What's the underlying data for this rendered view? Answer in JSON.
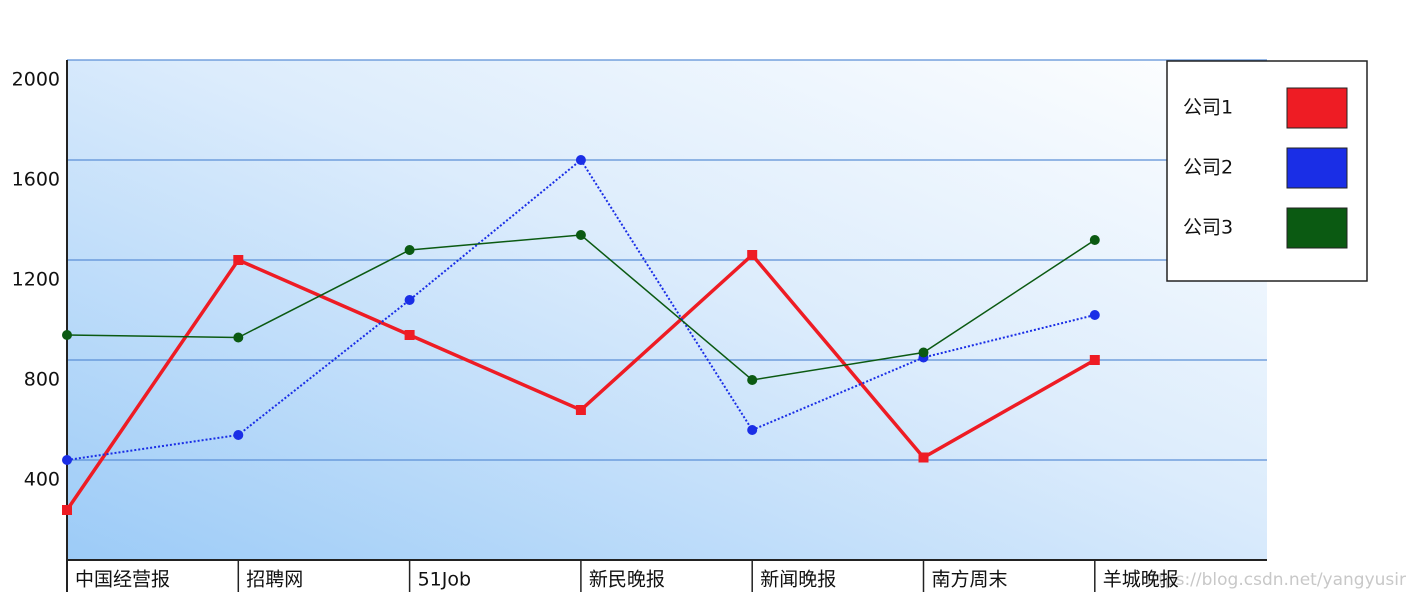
{
  "chart_data": {
    "type": "line",
    "categories": [
      "中国经营报",
      "招聘网",
      "51Job",
      "新民晚报",
      "新闻晚报",
      "南方周末",
      "羊城晚报"
    ],
    "series": [
      {
        "name": "公司1",
        "color": "#ee1c24",
        "values": [
          200,
          1200,
          900,
          600,
          1220,
          410,
          800
        ]
      },
      {
        "name": "公司2",
        "color": "#1a2ee6",
        "values": [
          400,
          500,
          1040,
          1600,
          520,
          810,
          980
        ]
      },
      {
        "name": "公司3",
        "color": "#0b5a12",
        "values": [
          900,
          890,
          1240,
          1300,
          720,
          830,
          1280
        ]
      }
    ],
    "ylim": [
      0,
      2000
    ],
    "yticks": [
      400,
      800,
      1200,
      1600,
      2000
    ],
    "grid": true,
    "legend": "top-right",
    "watermark": "https://blog.csdn.net/yangyusir"
  }
}
